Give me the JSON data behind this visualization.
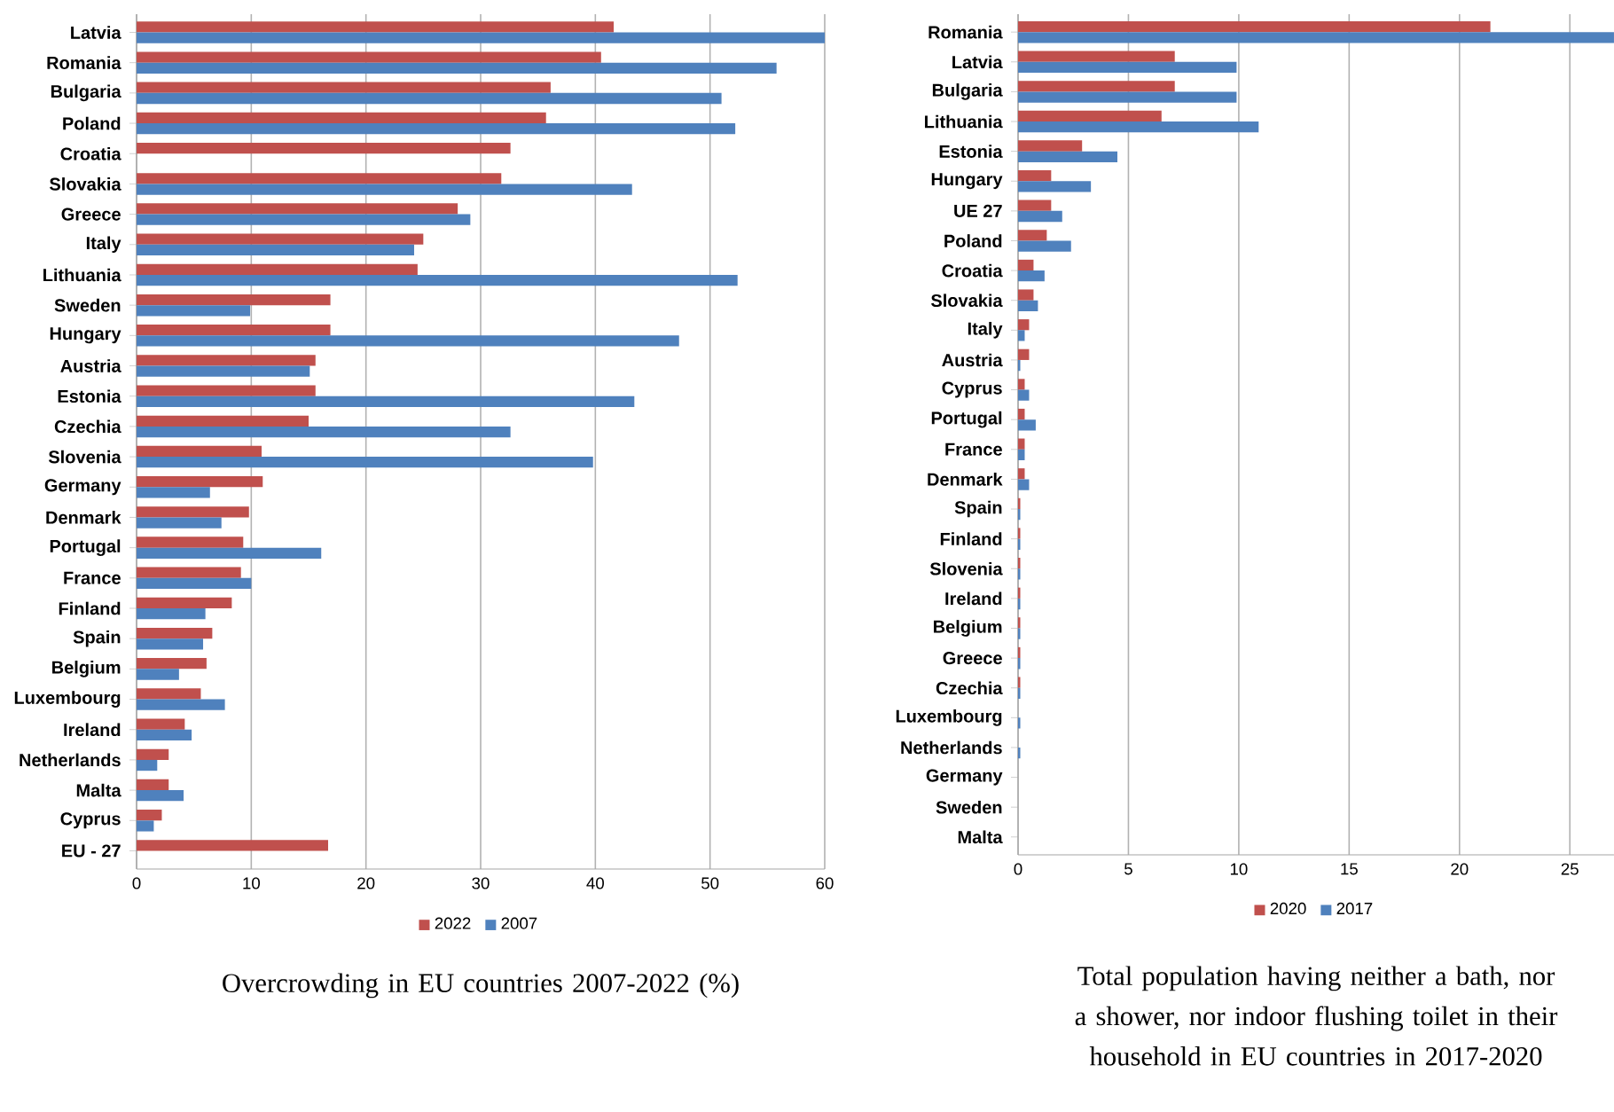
{
  "chart_data": [
    {
      "type": "bar",
      "orientation": "horizontal",
      "title": "Overcrowding in EU countries 2007-2022 (%)",
      "categories": [
        "Latvia",
        "Romania",
        "Bulgaria",
        "Poland",
        "Croatia",
        "Slovakia",
        "Greece",
        "Italy",
        "Lithuania",
        "Sweden",
        "Hungary",
        "Austria",
        "Estonia",
        "Czechia",
        "Slovenia",
        "Germany",
        "Denmark",
        "Portugal",
        "France",
        "Finland",
        "Spain",
        "Belgium",
        "Luxembourg",
        "Ireland",
        "Netherlands",
        "Malta",
        "Cyprus",
        "EU - 27"
      ],
      "series": [
        {
          "name": "2022",
          "color": "#c0504d",
          "values": [
            41.6,
            40.5,
            36.1,
            35.7,
            32.6,
            31.8,
            28.0,
            25.0,
            24.5,
            16.9,
            16.9,
            15.6,
            15.6,
            15.0,
            10.9,
            11.0,
            9.8,
            9.3,
            9.1,
            8.3,
            6.6,
            6.1,
            5.6,
            4.2,
            2.8,
            2.8,
            2.2,
            16.7
          ]
        },
        {
          "name": "2007",
          "color": "#4f81bd",
          "values": [
            60.0,
            55.8,
            51.0,
            52.2,
            null,
            43.2,
            29.1,
            24.2,
            52.4,
            9.9,
            47.3,
            15.1,
            43.4,
            32.6,
            39.8,
            6.4,
            7.4,
            16.1,
            10.0,
            6.0,
            5.8,
            3.7,
            7.7,
            4.8,
            1.8,
            4.1,
            1.5,
            null
          ]
        }
      ],
      "xlim": [
        0,
        60
      ],
      "xticks": [
        0,
        10,
        20,
        30,
        40,
        50,
        60
      ],
      "grid": "x",
      "legend": "bottom"
    },
    {
      "type": "bar",
      "orientation": "horizontal",
      "title": "Total population having neither a bath, nor a shower, nor indoor flushing toilet in their household in EU countries in 2017-2020",
      "categories": [
        "Romania",
        "Latvia",
        "Bulgaria",
        "Lithuania",
        "Estonia",
        "Hungary",
        "UE 27",
        "Poland",
        "Croatia",
        "Slovakia",
        "Italy",
        "Austria",
        "Cyprus",
        "Portugal",
        "France",
        "Denmark",
        "Spain",
        "Finland",
        "Slovenia",
        "Ireland",
        "Belgium",
        "Greece",
        "Czechia",
        "Luxembourg",
        "Netherlands",
        "Germany",
        "Sweden",
        "Malta"
      ],
      "series": [
        {
          "name": "2020",
          "color": "#c0504d",
          "values": [
            21.4,
            7.1,
            7.1,
            6.5,
            2.9,
            1.5,
            1.5,
            1.3,
            0.7,
            0.7,
            0.5,
            0.5,
            0.3,
            0.3,
            0.3,
            0.3,
            0.1,
            0.1,
            0.1,
            0.1,
            0.1,
            0.1,
            0.1,
            0,
            0,
            0,
            0,
            0
          ]
        },
        {
          "name": "2017",
          "color": "#4f81bd",
          "values": [
            27.0,
            9.9,
            9.9,
            10.9,
            4.5,
            3.3,
            2.0,
            2.4,
            1.2,
            0.9,
            0.3,
            0.1,
            0.5,
            0.8,
            0.3,
            0.5,
            0.1,
            0.1,
            0.1,
            0.1,
            0.1,
            0.1,
            0.1,
            0.1,
            0.1,
            0,
            0,
            0
          ]
        }
      ],
      "xlim": [
        0,
        27
      ],
      "xticks": [
        0,
        5,
        10,
        15,
        20,
        25
      ],
      "grid": "x",
      "legend": "bottom"
    }
  ]
}
